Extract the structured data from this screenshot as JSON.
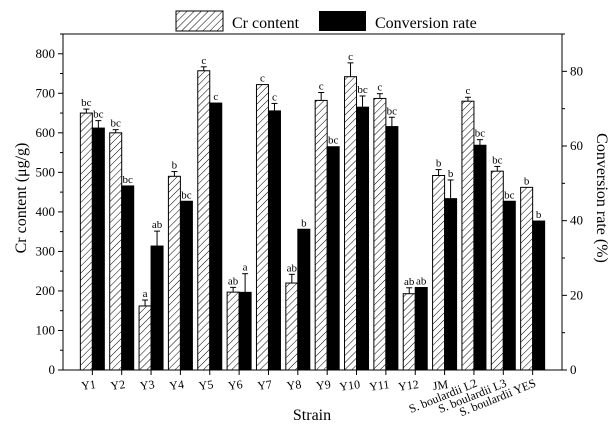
{
  "chart_data": {
    "type": "bar",
    "xlabel": "Strain",
    "ylabel_left": "Cr content (μg/g)",
    "ylabel_right": "Conversion rate (%)",
    "ylim_left": [
      0,
      850
    ],
    "yticks_left": [
      0,
      100,
      200,
      300,
      400,
      500,
      600,
      700,
      800
    ],
    "ylim_right": [
      0,
      90
    ],
    "yticks_right": [
      0,
      20,
      40,
      60,
      80
    ],
    "legend_position": "top-center",
    "categories": [
      "Y1",
      "Y2",
      "Y3",
      "Y4",
      "Y5",
      "Y6",
      "Y7",
      "Y8",
      "Y9",
      "Y10",
      "Y11",
      "Y12",
      "JM",
      "S. boulardii L2",
      "S. boulardii L3",
      "S. boulardii YES"
    ],
    "series": [
      {
        "name": "Cr content",
        "axis": "left",
        "pattern": "hatched",
        "values": [
          650,
          600,
          162,
          490,
          757,
          197,
          722,
          220,
          682,
          742,
          687,
          193,
          492,
          680,
          503,
          462
        ],
        "errors": [
          10,
          8,
          15,
          12,
          10,
          12,
          0,
          22,
          20,
          35,
          12,
          15,
          15,
          10,
          12,
          0
        ],
        "letters": [
          "bc",
          "bc",
          "a",
          "b",
          "c",
          "ab",
          "c",
          "ab",
          "c",
          "c",
          "c",
          "ab",
          "b",
          "c",
          "bc",
          "b"
        ]
      },
      {
        "name": "Conversion rate",
        "axis": "right",
        "pattern": "solid",
        "values": [
          64.8,
          49.3,
          33.2,
          45.2,
          71.5,
          20.8,
          69.4,
          37.7,
          59.8,
          70.4,
          65.2,
          22.1,
          45.9,
          60.2,
          45.2,
          39.9
        ],
        "errors": [
          2,
          0,
          4,
          0,
          0,
          5,
          2,
          0,
          0,
          3,
          2.5,
          0,
          5,
          1.5,
          0,
          0
        ],
        "letters": [
          "bc",
          "bc",
          "ab",
          "bc",
          "c",
          "a",
          "c",
          "b",
          "bc",
          "bc",
          "bc",
          "ab",
          "b",
          "bc",
          "bc",
          "b"
        ]
      }
    ]
  }
}
